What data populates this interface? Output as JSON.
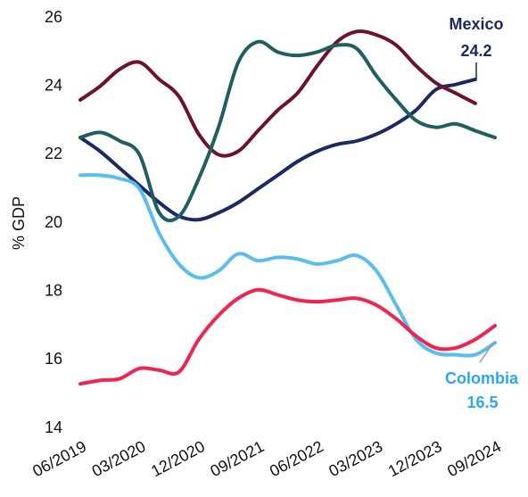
{
  "chart_data": {
    "type": "line",
    "y_label": "% GDP",
    "categories": [
      "06/2019",
      null,
      null,
      "03/2020",
      null,
      null,
      "12/2020",
      null,
      null,
      "09/2021",
      null,
      null,
      "06/2022",
      null,
      null,
      "03/2023",
      null,
      null,
      "12/2023",
      null,
      null,
      "09/2024"
    ],
    "ylim": [
      14,
      26
    ],
    "yticks": [
      14,
      16,
      18,
      20,
      22,
      24,
      26
    ],
    "grid": false,
    "series": [
      {
        "name": "Mexico",
        "color": "#1b2a63",
        "values": [
          22.5,
          22.1,
          21.6,
          21.1,
          20.6,
          20.2,
          20.1,
          20.3,
          20.6,
          21.0,
          21.4,
          21.8,
          22.1,
          22.3,
          22.4,
          22.6,
          22.9,
          23.3,
          23.9,
          24.05,
          24.2,
          null
        ]
      },
      {
        "color": "#6e1030",
        "values": [
          23.6,
          24.0,
          24.5,
          24.7,
          24.2,
          23.7,
          22.6,
          22.0,
          22.1,
          22.7,
          23.3,
          23.8,
          24.6,
          25.3,
          25.6,
          25.5,
          25.2,
          24.6,
          24.1,
          23.8,
          23.5,
          null
        ]
      },
      {
        "color": "#1f5f64",
        "values": [
          22.5,
          22.65,
          22.4,
          22.0,
          20.3,
          20.2,
          21.3,
          22.8,
          24.7,
          25.3,
          25.0,
          24.9,
          25.0,
          25.2,
          25.1,
          24.3,
          23.6,
          23.0,
          22.8,
          22.9,
          22.7,
          22.5
        ]
      },
      {
        "name": "Colombia",
        "color": "#5bbcef",
        "values": [
          21.4,
          21.4,
          21.3,
          21.0,
          19.7,
          18.8,
          18.4,
          18.6,
          19.1,
          18.9,
          19.0,
          18.95,
          18.8,
          18.9,
          19.05,
          18.6,
          17.6,
          16.6,
          16.2,
          16.15,
          16.15,
          16.5
        ]
      },
      {
        "color": "#f02450",
        "values": [
          15.3,
          15.4,
          15.45,
          15.75,
          15.7,
          15.65,
          16.6,
          17.3,
          17.8,
          18.05,
          17.9,
          17.75,
          17.7,
          17.75,
          17.8,
          17.6,
          17.2,
          16.7,
          16.35,
          16.35,
          16.6,
          17.0
        ]
      }
    ]
  }
}
